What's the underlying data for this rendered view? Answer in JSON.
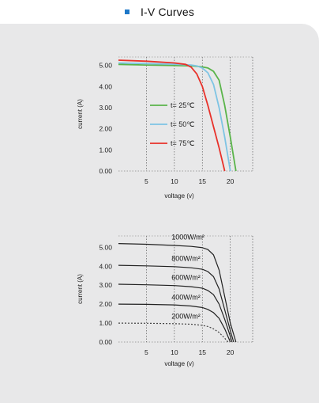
{
  "header": {
    "title": "I-V Curves",
    "accent": "#1e78c8"
  },
  "panel_color": "#e8e8e9",
  "chart_data": [
    {
      "type": "line",
      "xlabel": "voltage (v)",
      "ylabel": "current (A)",
      "xlim": [
        0,
        24
      ],
      "ylim": [
        0,
        5.4
      ],
      "x_ticks": [
        {
          "value": 5,
          "label": "5"
        },
        {
          "value": 10,
          "label": "10"
        },
        {
          "value": 15,
          "label": "15"
        },
        {
          "value": 20,
          "label": "20"
        }
      ],
      "y_ticks": [
        {
          "value": 0,
          "label": "0.00"
        },
        {
          "value": 1,
          "label": "1.00"
        },
        {
          "value": 2,
          "label": "2.00"
        },
        {
          "value": 3,
          "label": "3.00"
        },
        {
          "value": 4,
          "label": "4.00"
        },
        {
          "value": 5,
          "label": "5.00"
        }
      ],
      "grid": "dotted-vertical",
      "legend_position": "center-left",
      "series": [
        {
          "name": "t= 25℃",
          "color": "#5ab44a",
          "points": [
            [
              0,
              5.05
            ],
            [
              5,
              5.02
            ],
            [
              10,
              5.0
            ],
            [
              13,
              4.98
            ],
            [
              14,
              4.96
            ],
            [
              15,
              4.93
            ],
            [
              16,
              4.88
            ],
            [
              17,
              4.72
            ],
            [
              18,
              4.3
            ],
            [
              19,
              3.1
            ],
            [
              20,
              1.6
            ],
            [
              21,
              0.0
            ]
          ]
        },
        {
          "name": "t= 50℃",
          "color": "#7ec4e4",
          "points": [
            [
              0,
              5.12
            ],
            [
              5,
              5.09
            ],
            [
              10,
              5.06
            ],
            [
              13,
              5.02
            ],
            [
              14,
              4.98
            ],
            [
              15,
              4.88
            ],
            [
              16,
              4.65
            ],
            [
              17,
              4.1
            ],
            [
              18,
              3.0
            ],
            [
              19,
              1.6
            ],
            [
              20,
              0.0
            ]
          ]
        },
        {
          "name": "t= 75℃",
          "color": "#e8312a",
          "points": [
            [
              0,
              5.25
            ],
            [
              5,
              5.2
            ],
            [
              10,
              5.12
            ],
            [
              12,
              5.05
            ],
            [
              13,
              4.92
            ],
            [
              14,
              4.6
            ],
            [
              15,
              4.0
            ],
            [
              16,
              3.1
            ],
            [
              17,
              2.1
            ],
            [
              18,
              1.1
            ],
            [
              19,
              0.0
            ]
          ]
        }
      ]
    },
    {
      "type": "line",
      "xlabel": "voltage (v)",
      "ylabel": "current (A)",
      "xlim": [
        0,
        24
      ],
      "ylim": [
        0,
        5.6
      ],
      "x_ticks": [
        {
          "value": 5,
          "label": "5"
        },
        {
          "value": 10,
          "label": "10"
        },
        {
          "value": 15,
          "label": "15"
        },
        {
          "value": 20,
          "label": "20"
        }
      ],
      "y_ticks": [
        {
          "value": 0,
          "label": "0.00"
        },
        {
          "value": 1,
          "label": "1.00"
        },
        {
          "value": 2,
          "label": "2.00"
        },
        {
          "value": 3,
          "label": "3.00"
        },
        {
          "value": 4,
          "label": "4.00"
        },
        {
          "value": 5,
          "label": "5.00"
        }
      ],
      "grid": "dotted-vertical",
      "series": [
        {
          "name": "1000W/m²",
          "color": "#222222",
          "dash": false,
          "points": [
            [
              0,
              5.2
            ],
            [
              5,
              5.16
            ],
            [
              10,
              5.1
            ],
            [
              13,
              5.05
            ],
            [
              15,
              4.98
            ],
            [
              16,
              4.88
            ],
            [
              17,
              4.6
            ],
            [
              18,
              3.8
            ],
            [
              19,
              2.4
            ],
            [
              20,
              1.0
            ],
            [
              21,
              0.0
            ]
          ],
          "label_at": [
            9.5,
            5.42
          ]
        },
        {
          "name": "800W/m²",
          "color": "#222222",
          "dash": false,
          "points": [
            [
              0,
              4.05
            ],
            [
              5,
              4.02
            ],
            [
              10,
              3.98
            ],
            [
              13,
              3.92
            ],
            [
              15,
              3.84
            ],
            [
              16,
              3.72
            ],
            [
              17,
              3.45
            ],
            [
              18,
              2.8
            ],
            [
              19,
              1.7
            ],
            [
              20,
              0.6
            ],
            [
              20.6,
              0.0
            ]
          ],
          "label_at": [
            9.5,
            4.28
          ]
        },
        {
          "name": "600W/m²",
          "color": "#222222",
          "dash": false,
          "points": [
            [
              0,
              3.05
            ],
            [
              5,
              3.02
            ],
            [
              10,
              2.98
            ],
            [
              13,
              2.92
            ],
            [
              15,
              2.84
            ],
            [
              16,
              2.72
            ],
            [
              17,
              2.5
            ],
            [
              18,
              2.0
            ],
            [
              19,
              1.2
            ],
            [
              20,
              0.3
            ],
            [
              20.3,
              0.0
            ]
          ],
          "label_at": [
            9.5,
            3.28
          ]
        },
        {
          "name": "400W/m²",
          "color": "#222222",
          "dash": false,
          "points": [
            [
              0,
              2.0
            ],
            [
              5,
              1.99
            ],
            [
              10,
              1.96
            ],
            [
              13,
              1.9
            ],
            [
              15,
              1.82
            ],
            [
              16,
              1.72
            ],
            [
              17,
              1.55
            ],
            [
              18,
              1.25
            ],
            [
              19,
              0.7
            ],
            [
              20,
              0.0
            ]
          ],
          "label_at": [
            9.5,
            2.24
          ]
        },
        {
          "name": "200W/m²",
          "color": "#444444",
          "dash": true,
          "points": [
            [
              0,
              1.0
            ],
            [
              5,
              0.99
            ],
            [
              10,
              0.97
            ],
            [
              13,
              0.94
            ],
            [
              15,
              0.88
            ],
            [
              16,
              0.82
            ],
            [
              17,
              0.7
            ],
            [
              18,
              0.5
            ],
            [
              19,
              0.2
            ],
            [
              19.6,
              0.0
            ]
          ],
          "label_at": [
            9.5,
            1.24
          ]
        }
      ]
    }
  ]
}
